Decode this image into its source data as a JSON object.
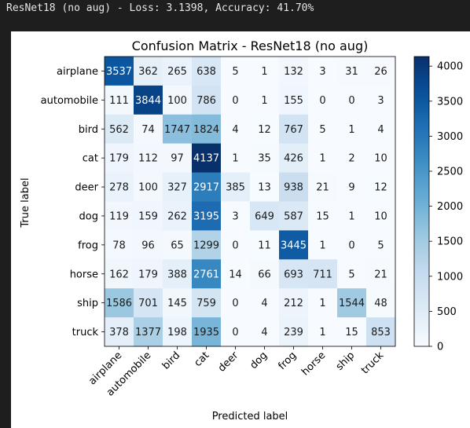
{
  "console": {
    "summary_line": "ResNet18 (no aug) - Loss: 3.1398, Accuracy: 41.70%"
  },
  "colors": {
    "console_bg": "#1e1e1e",
    "console_text": "#e6e6e6",
    "cmap_low": "#f7fbff",
    "cmap_high": "#08306b",
    "text_dark": "#1a1a1a",
    "text_light": "#ffffff"
  },
  "chart_data": {
    "type": "heatmap",
    "title": "Confusion Matrix - ResNet18 (no aug)",
    "xlabel": "Predicted label",
    "ylabel": "True label",
    "colormap": "Blues",
    "classes": [
      "airplane",
      "automobile",
      "bird",
      "cat",
      "deer",
      "dog",
      "frog",
      "horse",
      "ship",
      "truck"
    ],
    "matrix": [
      [
        3537,
        362,
        265,
        638,
        5,
        1,
        132,
        3,
        31,
        26
      ],
      [
        111,
        3844,
        100,
        786,
        0,
        1,
        155,
        0,
        0,
        3
      ],
      [
        562,
        74,
        1747,
        1824,
        4,
        12,
        767,
        5,
        1,
        4
      ],
      [
        179,
        112,
        97,
        4137,
        1,
        35,
        426,
        1,
        2,
        10
      ],
      [
        278,
        100,
        327,
        2917,
        385,
        13,
        938,
        21,
        9,
        12
      ],
      [
        119,
        159,
        262,
        3195,
        3,
        649,
        587,
        15,
        1,
        10
      ],
      [
        78,
        96,
        65,
        1299,
        0,
        11,
        3445,
        1,
        0,
        5
      ],
      [
        162,
        179,
        388,
        2761,
        14,
        66,
        693,
        711,
        5,
        21
      ],
      [
        1586,
        701,
        145,
        759,
        0,
        4,
        212,
        1,
        1544,
        48
      ],
      [
        378,
        1377,
        198,
        1935,
        0,
        4,
        239,
        1,
        15,
        853
      ]
    ],
    "colorbar": {
      "range": [
        0,
        4137
      ],
      "ticks": [
        0,
        500,
        1000,
        1500,
        2000,
        2500,
        3000,
        3500,
        4000
      ]
    }
  }
}
